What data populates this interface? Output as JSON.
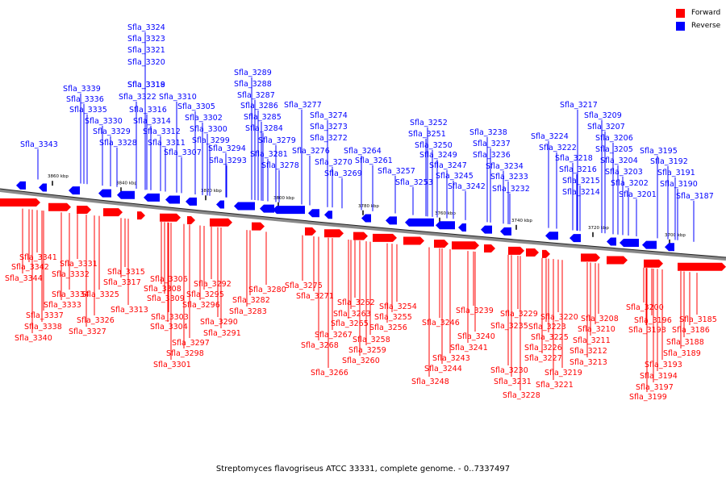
{
  "caption": "Streptomyces flavogriseus ATCC 33331, complete genome. - 0..7337497",
  "legend": [
    {
      "label": "Forward",
      "color": "#ff0000"
    },
    {
      "label": "Reverse",
      "color": "#0000ff"
    }
  ],
  "ticks": [
    "3860 kbp",
    "3840 kbp",
    "3820 kbp",
    "3800 kbp",
    "3780 kbp",
    "3760 kbp",
    "3740 kbp",
    "3720 kbp",
    "3700 kbp"
  ],
  "reverse_labels": [
    "Sfla_3343",
    "Sfla_3339",
    "Sfla_3336",
    "Sfla_3335",
    "Sfla_3330",
    "Sfla_3329",
    "Sfla_3328",
    "Sfla_3324",
    "Sfla_3323",
    "Sfla_3321",
    "Sfla_3320",
    "Sfla_3319",
    "Sfla_3318",
    "Sfla_3322",
    "Sfla_3316",
    "Sfla_3314",
    "Sfla_3312",
    "Sfla_3311",
    "Sfla_3310",
    "Sfla_3305",
    "Sfla_3302",
    "Sfla_3300",
    "Sfla_3299",
    "Sfla_3307",
    "Sfla_3294",
    "Sfla_3293",
    "Sfla_3289",
    "Sfla_3288",
    "Sfla_3287",
    "Sfla_3286",
    "Sfla_3285",
    "Sfla_3284",
    "Sfla_3279",
    "Sfla_3281",
    "Sfla_3278",
    "Sfla_3277",
    "Sfla_3274",
    "Sfla_3273",
    "Sfla_3272",
    "Sfla_3276",
    "Sfla_3270",
    "Sfla_3269",
    "Sfla_3264",
    "Sfla_3261",
    "Sfla_3257",
    "Sfla_3253",
    "Sfla_3252",
    "Sfla_3251",
    "Sfla_3250",
    "Sfla_3249",
    "Sfla_3247",
    "Sfla_3245",
    "Sfla_3242",
    "Sfla_3238",
    "Sfla_3237",
    "Sfla_3236",
    "Sfla_3234",
    "Sfla_3233",
    "Sfla_3232",
    "Sfla_3224",
    "Sfla_3222",
    "Sfla_3217",
    "Sfla_3218",
    "Sfla_3216",
    "Sfla_3215",
    "Sfla_3214",
    "Sfla_3209",
    "Sfla_3207",
    "Sfla_3206",
    "Sfla_3205",
    "Sfla_3204",
    "Sfla_3203",
    "Sfla_3202",
    "Sfla_3201",
    "Sfla_3195",
    "Sfla_3192",
    "Sfla_3191",
    "Sfla_3190",
    "Sfla_3187"
  ],
  "forward_labels": [
    "Sfla_3341",
    "Sfla_3342",
    "Sfla_3344",
    "Sfla_3331",
    "Sfla_3332",
    "Sfla_3334",
    "Sfla_3333",
    "Sfla_3337",
    "Sfla_3338",
    "Sfla_3340",
    "Sfla_3325",
    "Sfla_3326",
    "Sfla_3327",
    "Sfla_3315",
    "Sfla_3317",
    "Sfla_3313",
    "Sfla_3306",
    "Sfla_3308",
    "Sfla_3309",
    "Sfla_3303",
    "Sfla_3304",
    "Sfla_3292",
    "Sfla_3295",
    "Sfla_3296",
    "Sfla_3290",
    "Sfla_3291",
    "Sfla_3297",
    "Sfla_3298",
    "Sfla_3301",
    "Sfla_3280",
    "Sfla_3282",
    "Sfla_3283",
    "Sfla_3275",
    "Sfla_3271",
    "Sfla_3262",
    "Sfla_3263",
    "Sfla_3265",
    "Sfla_3267",
    "Sfla_3268",
    "Sfla_3266",
    "Sfla_3254",
    "Sfla_3255",
    "Sfla_3256",
    "Sfla_3258",
    "Sfla_3259",
    "Sfla_3260",
    "Sfla_3246",
    "Sfla_3239",
    "Sfla_3235",
    "Sfla_3240",
    "Sfla_3241",
    "Sfla_3243",
    "Sfla_3244",
    "Sfla_3248",
    "Sfla_3229",
    "Sfla_3220",
    "Sfla_3223",
    "Sfla_3225",
    "Sfla_3226",
    "Sfla_3227",
    "Sfla_3230",
    "Sfla_3231",
    "Sfla_3228",
    "Sfla_3208",
    "Sfla_3210",
    "Sfla_3211",
    "Sfla_3212",
    "Sfla_3213",
    "Sfla_3219",
    "Sfla_3221",
    "Sfla_3200",
    "Sfla_3196",
    "Sfla_3198",
    "Sfla_3185",
    "Sfla_3186",
    "Sfla_3188",
    "Sfla_3189",
    "Sfla_3193",
    "Sfla_3194",
    "Sfla_3197",
    "Sfla_3199"
  ]
}
